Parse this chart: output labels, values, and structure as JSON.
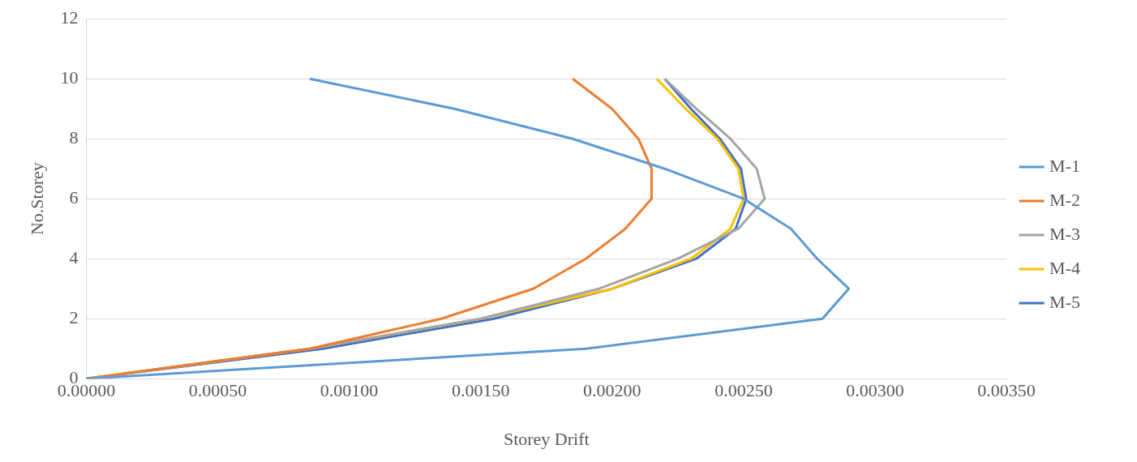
{
  "chart_data": {
    "type": "line",
    "xlabel": "Storey Drift",
    "ylabel": "No.Storey",
    "series": [
      {
        "name": "M-1",
        "color": "#5b9bd5",
        "x": [
          0,
          0.0019,
          0.0028,
          0.0029,
          0.00278,
          0.00268,
          0.0025,
          0.0022,
          0.00185,
          0.0014,
          0.00085
        ],
        "values": [
          0,
          1,
          2,
          3,
          4,
          5,
          6,
          7,
          8,
          9,
          10
        ]
      },
      {
        "name": "M-2",
        "color": "#ed7d31",
        "x": [
          0,
          0.00085,
          0.00135,
          0.0017,
          0.0019,
          0.00205,
          0.00215,
          0.00215,
          0.0021,
          0.002,
          0.00185
        ],
        "values": [
          0,
          1,
          2,
          3,
          4,
          5,
          6,
          7,
          8,
          9,
          10
        ]
      },
      {
        "name": "M-3",
        "color": "#a5a5a5",
        "x": [
          0,
          0.00085,
          0.0015,
          0.00195,
          0.00225,
          0.00248,
          0.00258,
          0.00255,
          0.00245,
          0.00232,
          0.0022
        ],
        "values": [
          0,
          1,
          2,
          3,
          4,
          5,
          6,
          7,
          8,
          9,
          10
        ]
      },
      {
        "name": "M-4",
        "color": "#ffc000",
        "x": [
          0,
          0.00085,
          0.0015,
          0.002,
          0.0023,
          0.00245,
          0.0025,
          0.00248,
          0.0024,
          0.00228,
          0.00217
        ],
        "values": [
          0,
          1,
          2,
          3,
          4,
          5,
          6,
          7,
          8,
          9,
          10
        ]
      },
      {
        "name": "M-5",
        "color": "#4472c4",
        "x": [
          0,
          0.0009,
          0.00155,
          0.002,
          0.00232,
          0.00247,
          0.00251,
          0.00249,
          0.00241,
          0.0023,
          0.0022
        ],
        "values": [
          0,
          1,
          2,
          3,
          4,
          5,
          6,
          7,
          8,
          9,
          10
        ]
      }
    ],
    "xlim": [
      0,
      0.0035
    ],
    "xticks": [
      {
        "value": 0,
        "label": "0.00000"
      },
      {
        "value": 0.0005,
        "label": "0.00050"
      },
      {
        "value": 0.001,
        "label": "0.00100"
      },
      {
        "value": 0.0015,
        "label": "0.00150"
      },
      {
        "value": 0.002,
        "label": "0.00200"
      },
      {
        "value": 0.0025,
        "label": "0.00250"
      },
      {
        "value": 0.003,
        "label": "0.00300"
      },
      {
        "value": 0.0035,
        "label": "0.00350"
      }
    ],
    "ylim": [
      0,
      12
    ],
    "yticks": [
      0,
      2,
      4,
      6,
      8,
      10,
      12
    ],
    "grid": "y",
    "legend": "right",
    "marker": "none",
    "line_style": "solid"
  }
}
